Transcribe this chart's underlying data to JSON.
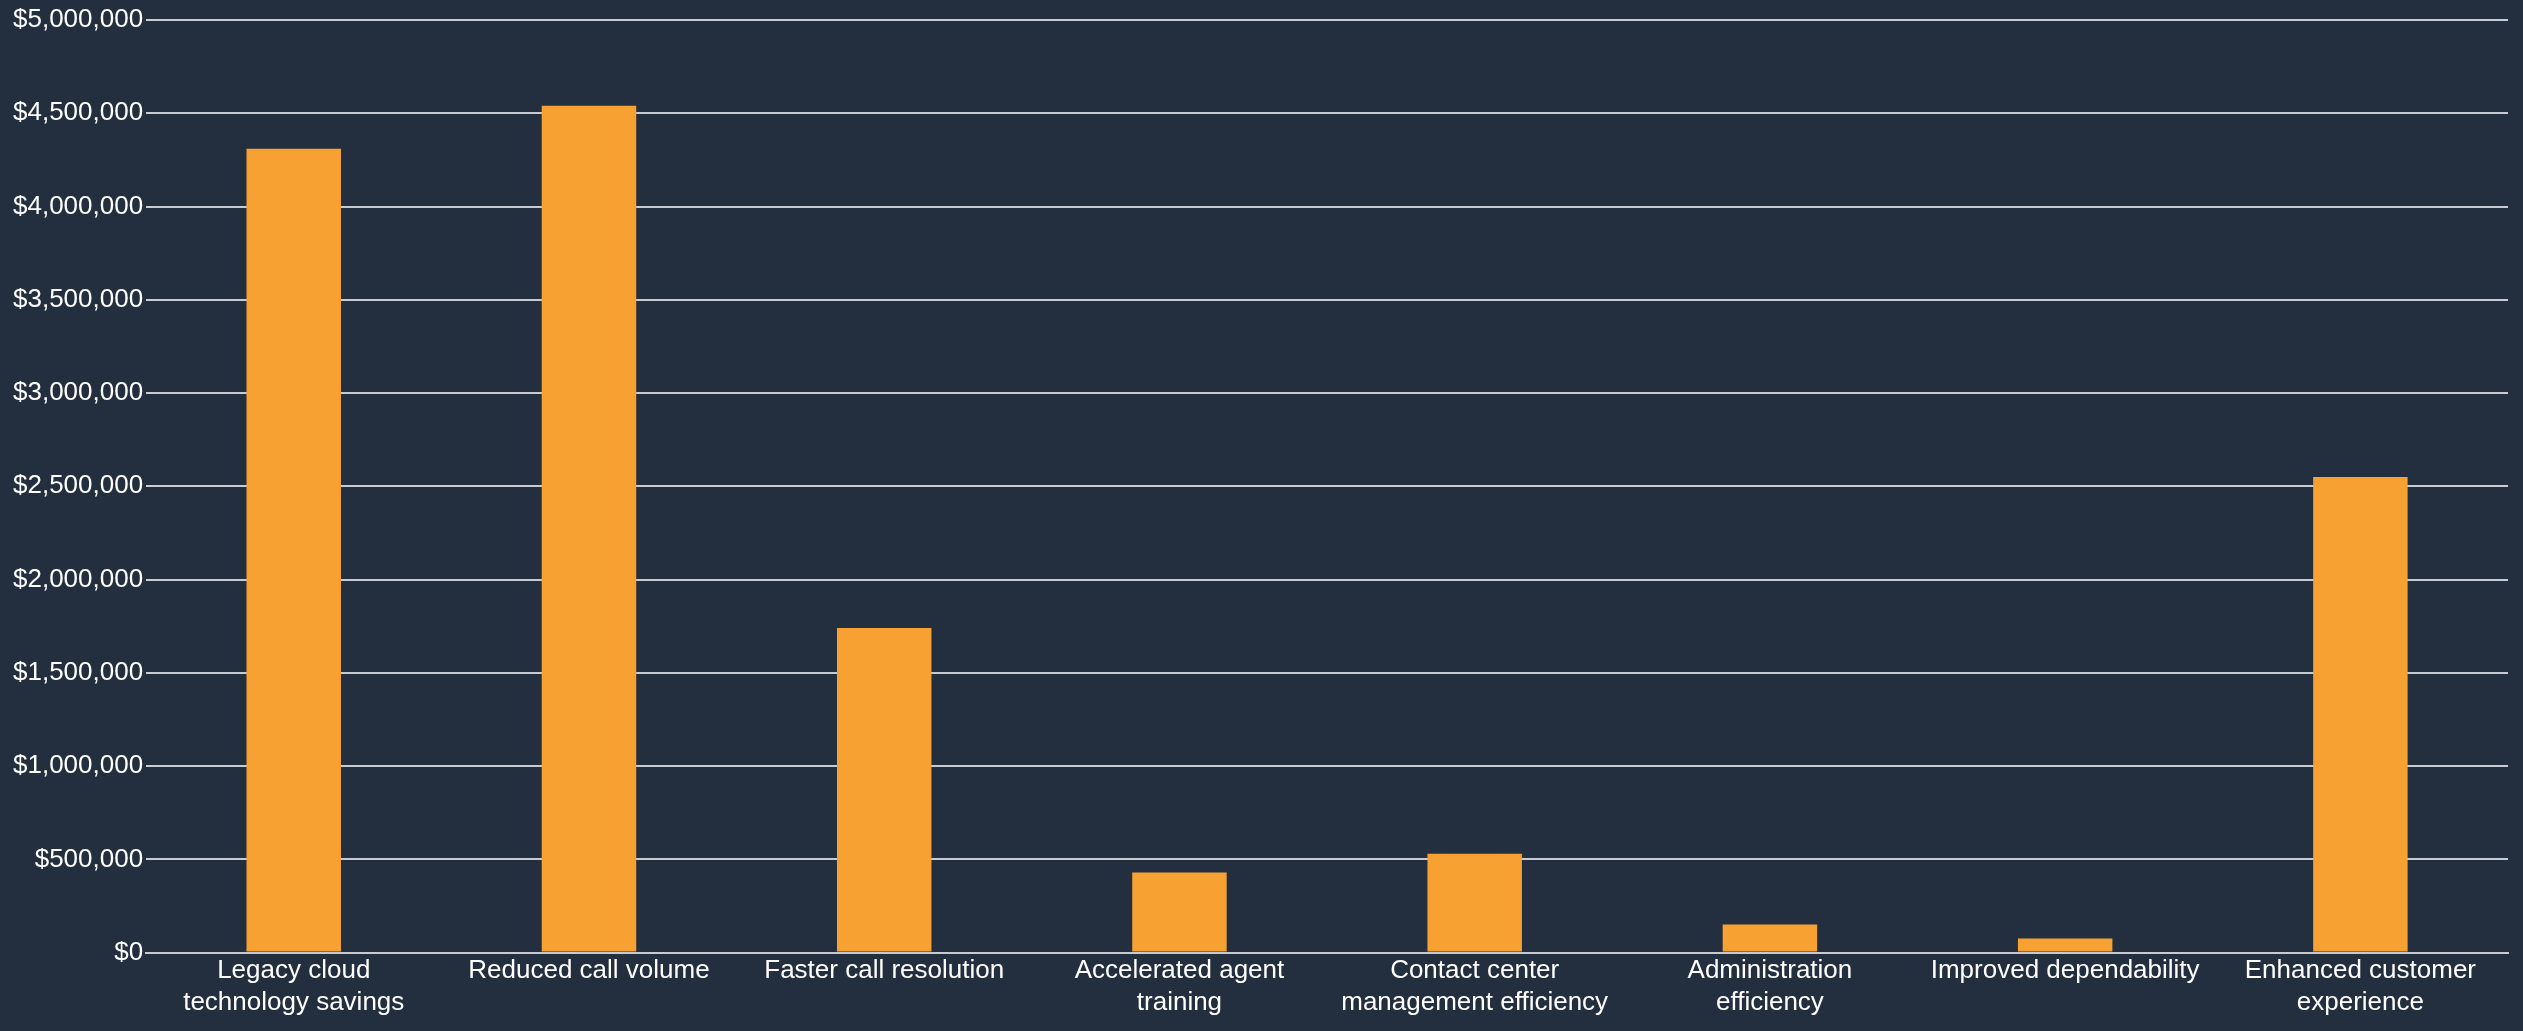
{
  "chart_data": {
    "type": "bar",
    "categories": [
      "Legacy cloud technology savings",
      "Reduced call volume",
      "Faster call resolution",
      "Accelerated agent training",
      "Contact center management efficiency",
      "Administration efficiency",
      "Improved dependability",
      "Enhanced customer experience"
    ],
    "values": [
      4310000,
      4540000,
      1740000,
      430000,
      530000,
      150000,
      75000,
      2550000
    ],
    "color": "#f7a133",
    "ylim": [
      0,
      5000000
    ],
    "yticks": [
      {
        "value": 0,
        "label": "$0"
      },
      {
        "value": 500000,
        "label": "$500,000"
      },
      {
        "value": 1000000,
        "label": "$1,000,000"
      },
      {
        "value": 1500000,
        "label": "$1,500,000"
      },
      {
        "value": 2000000,
        "label": "$2,000,000"
      },
      {
        "value": 2500000,
        "label": "$2,500,000"
      },
      {
        "value": 3000000,
        "label": "$3,000,000"
      },
      {
        "value": 3500000,
        "label": "$3,500,000"
      },
      {
        "value": 4000000,
        "label": "$4,000,000"
      },
      {
        "value": 4500000,
        "label": "$4,500,000"
      },
      {
        "value": 5000000,
        "label": "$5,000,000"
      }
    ],
    "grid": "y"
  }
}
